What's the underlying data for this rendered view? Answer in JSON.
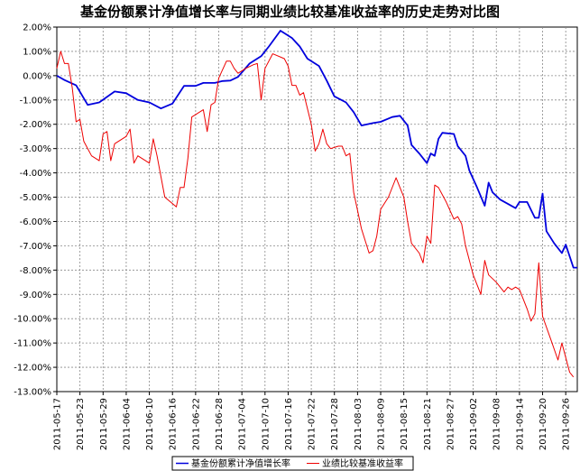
{
  "chart_data": {
    "type": "line",
    "title": "基金份额累计净值增长率与同期业绩比较基准收益率的历史走势对比图",
    "xlabel": "",
    "ylabel": "",
    "ylim": [
      -13.0,
      2.0
    ],
    "xlim": [
      "2011-05-17",
      "2011-09-29"
    ],
    "grid": true,
    "legend_position": "bottom",
    "y_ticks": [
      "2.00%",
      "1.00%",
      "0.00%",
      "-1.00%",
      "-2.00%",
      "-3.00%",
      "-4.00%",
      "-5.00%",
      "-6.00%",
      "-7.00%",
      "-8.00%",
      "-9.00%",
      "-10.00%",
      "-11.00%",
      "-12.00%",
      "-13.00%"
    ],
    "x_ticks": [
      "2011-05-17",
      "2011-05-23",
      "2011-05-29",
      "2011-06-04",
      "2011-06-10",
      "2011-06-16",
      "2011-06-22",
      "2011-06-28",
      "2011-07-04",
      "2011-07-10",
      "2011-07-16",
      "2011-07-22",
      "2011-07-28",
      "2011-08-03",
      "2011-08-09",
      "2011-08-15",
      "2011-08-21",
      "2011-08-27",
      "2011-09-02",
      "2011-09-08",
      "2011-09-14",
      "2011-09-20",
      "2011-09-26"
    ],
    "series": [
      {
        "name": "基金份额累计净值增长率",
        "color": "#0000dd",
        "points": [
          [
            "2011-05-17",
            0.0
          ],
          [
            "2011-05-19",
            -0.18
          ],
          [
            "2011-05-22",
            -0.4
          ],
          [
            "2011-05-25",
            -1.2
          ],
          [
            "2011-05-28",
            -1.1
          ],
          [
            "2011-06-01",
            -0.65
          ],
          [
            "2011-06-04",
            -0.72
          ],
          [
            "2011-06-07",
            -1.0
          ],
          [
            "2011-06-10",
            -1.1
          ],
          [
            "2011-06-13",
            -1.35
          ],
          [
            "2011-06-16",
            -1.15
          ],
          [
            "2011-06-19",
            -0.42
          ],
          [
            "2011-06-22",
            -0.42
          ],
          [
            "2011-06-24",
            -0.3
          ],
          [
            "2011-06-27",
            -0.3
          ],
          [
            "2011-06-29",
            -0.22
          ],
          [
            "2011-07-01",
            -0.2
          ],
          [
            "2011-07-03",
            -0.05
          ],
          [
            "2011-07-06",
            0.5
          ],
          [
            "2011-07-09",
            0.8
          ],
          [
            "2011-07-11",
            1.2
          ],
          [
            "2011-07-14",
            1.85
          ],
          [
            "2011-07-17",
            1.55
          ],
          [
            "2011-07-19",
            1.2
          ],
          [
            "2011-07-21",
            0.7
          ],
          [
            "2011-07-24",
            0.4
          ],
          [
            "2011-07-26",
            -0.2
          ],
          [
            "2011-07-28",
            -0.85
          ],
          [
            "2011-07-31",
            -1.1
          ],
          [
            "2011-08-02",
            -1.5
          ],
          [
            "2011-08-04",
            -2.05
          ],
          [
            "2011-08-07",
            -1.95
          ],
          [
            "2011-08-09",
            -1.9
          ],
          [
            "2011-08-12",
            -1.7
          ],
          [
            "2011-08-14",
            -1.65
          ],
          [
            "2011-08-16",
            -2.05
          ],
          [
            "2011-08-17",
            -2.85
          ],
          [
            "2011-08-19",
            -3.2
          ],
          [
            "2011-08-21",
            -3.6
          ],
          [
            "2011-08-22",
            -3.2
          ],
          [
            "2011-08-23",
            -3.3
          ],
          [
            "2011-08-24",
            -2.6
          ],
          [
            "2011-08-25",
            -2.35
          ],
          [
            "2011-08-28",
            -2.4
          ],
          [
            "2011-08-29",
            -2.9
          ],
          [
            "2011-08-31",
            -3.3
          ],
          [
            "2011-09-01",
            -3.9
          ],
          [
            "2011-09-03",
            -4.6
          ],
          [
            "2011-09-05",
            -5.35
          ],
          [
            "2011-09-06",
            -4.4
          ],
          [
            "2011-09-07",
            -4.8
          ],
          [
            "2011-09-09",
            -5.1
          ],
          [
            "2011-09-13",
            -5.45
          ],
          [
            "2011-09-14",
            -5.2
          ],
          [
            "2011-09-16",
            -5.2
          ],
          [
            "2011-09-18",
            -5.85
          ],
          [
            "2011-09-19",
            -5.85
          ],
          [
            "2011-09-20",
            -4.85
          ],
          [
            "2011-09-21",
            -6.4
          ],
          [
            "2011-09-23",
            -6.9
          ],
          [
            "2011-09-25",
            -7.3
          ],
          [
            "2011-09-26",
            -6.95
          ],
          [
            "2011-09-28",
            -7.9
          ],
          [
            "2011-09-29",
            -7.9
          ]
        ]
      },
      {
        "name": "业绩比较基准收益率",
        "color": "#ee0000",
        "points": [
          [
            "2011-05-17",
            0.3
          ],
          [
            "2011-05-18",
            1.0
          ],
          [
            "2011-05-19",
            0.5
          ],
          [
            "2011-05-20",
            0.5
          ],
          [
            "2011-05-21",
            -0.5
          ],
          [
            "2011-05-22",
            -1.9
          ],
          [
            "2011-05-23",
            -1.8
          ],
          [
            "2011-05-24",
            -2.7
          ],
          [
            "2011-05-26",
            -3.3
          ],
          [
            "2011-05-28",
            -3.5
          ],
          [
            "2011-05-29",
            -2.4
          ],
          [
            "2011-05-30",
            -2.3
          ],
          [
            "2011-05-31",
            -3.5
          ],
          [
            "2011-06-01",
            -2.8
          ],
          [
            "2011-06-04",
            -2.5
          ],
          [
            "2011-06-05",
            -2.2
          ],
          [
            "2011-06-06",
            -3.6
          ],
          [
            "2011-06-07",
            -3.3
          ],
          [
            "2011-06-09",
            -3.5
          ],
          [
            "2011-06-10",
            -3.6
          ],
          [
            "2011-06-11",
            -2.6
          ],
          [
            "2011-06-12",
            -3.3
          ],
          [
            "2011-06-14",
            -5.0
          ],
          [
            "2011-06-17",
            -5.4
          ],
          [
            "2011-06-18",
            -4.6
          ],
          [
            "2011-06-19",
            -4.6
          ],
          [
            "2011-06-20",
            -3.4
          ],
          [
            "2011-06-21",
            -1.7
          ],
          [
            "2011-06-24",
            -1.4
          ],
          [
            "2011-06-25",
            -2.3
          ],
          [
            "2011-06-26",
            -1.2
          ],
          [
            "2011-06-27",
            -1.1
          ],
          [
            "2011-06-28",
            -0.1
          ],
          [
            "2011-06-30",
            0.6
          ],
          [
            "2011-07-01",
            0.6
          ],
          [
            "2011-07-02",
            0.3
          ],
          [
            "2011-07-03",
            0.1
          ],
          [
            "2011-07-05",
            0.3
          ],
          [
            "2011-07-07",
            0.45
          ],
          [
            "2011-07-08",
            0.5
          ],
          [
            "2011-07-09",
            -1.0
          ],
          [
            "2011-07-10",
            0.3
          ],
          [
            "2011-07-12",
            0.9
          ],
          [
            "2011-07-15",
            0.7
          ],
          [
            "2011-07-16",
            0.4
          ],
          [
            "2011-07-17",
            -0.4
          ],
          [
            "2011-07-18",
            -0.4
          ],
          [
            "2011-07-19",
            -0.8
          ],
          [
            "2011-07-20",
            -0.7
          ],
          [
            "2011-07-22",
            -2.0
          ],
          [
            "2011-07-23",
            -3.1
          ],
          [
            "2011-07-24",
            -2.8
          ],
          [
            "2011-07-25",
            -2.2
          ],
          [
            "2011-07-26",
            -2.8
          ],
          [
            "2011-07-27",
            -3.0
          ],
          [
            "2011-07-29",
            -2.9
          ],
          [
            "2011-07-30",
            -2.9
          ],
          [
            "2011-07-31",
            -3.3
          ],
          [
            "2011-08-01",
            -3.2
          ],
          [
            "2011-08-02",
            -4.8
          ],
          [
            "2011-08-04",
            -6.3
          ],
          [
            "2011-08-06",
            -7.3
          ],
          [
            "2011-08-07",
            -7.2
          ],
          [
            "2011-08-08",
            -6.6
          ],
          [
            "2011-08-09",
            -5.5
          ],
          [
            "2011-08-11",
            -5.0
          ],
          [
            "2011-08-13",
            -4.2
          ],
          [
            "2011-08-14",
            -4.6
          ],
          [
            "2011-08-15",
            -5.0
          ],
          [
            "2011-08-16",
            -6.0
          ],
          [
            "2011-08-17",
            -6.9
          ],
          [
            "2011-08-19",
            -7.3
          ],
          [
            "2011-08-20",
            -7.7
          ],
          [
            "2011-08-21",
            -6.6
          ],
          [
            "2011-08-22",
            -6.9
          ],
          [
            "2011-08-23",
            -4.5
          ],
          [
            "2011-08-24",
            -4.6
          ],
          [
            "2011-08-26",
            -5.2
          ],
          [
            "2011-08-28",
            -5.9
          ],
          [
            "2011-08-29",
            -5.8
          ],
          [
            "2011-08-30",
            -6.1
          ],
          [
            "2011-08-31",
            -7.0
          ],
          [
            "2011-09-02",
            -8.2
          ],
          [
            "2011-09-04",
            -9.0
          ],
          [
            "2011-09-05",
            -7.6
          ],
          [
            "2011-09-06",
            -8.2
          ],
          [
            "2011-09-08",
            -8.5
          ],
          [
            "2011-09-10",
            -8.9
          ],
          [
            "2011-09-11",
            -8.7
          ],
          [
            "2011-09-12",
            -8.8
          ],
          [
            "2011-09-13",
            -8.7
          ],
          [
            "2011-09-14",
            -8.8
          ],
          [
            "2011-09-16",
            -9.6
          ],
          [
            "2011-09-17",
            -10.1
          ],
          [
            "2011-09-18",
            -9.8
          ],
          [
            "2011-09-19",
            -7.7
          ],
          [
            "2011-09-20",
            -9.9
          ],
          [
            "2011-09-22",
            -10.8
          ],
          [
            "2011-09-24",
            -11.7
          ],
          [
            "2011-09-25",
            -11.0
          ],
          [
            "2011-09-27",
            -12.2
          ],
          [
            "2011-09-28",
            -12.4
          ]
        ]
      }
    ]
  }
}
